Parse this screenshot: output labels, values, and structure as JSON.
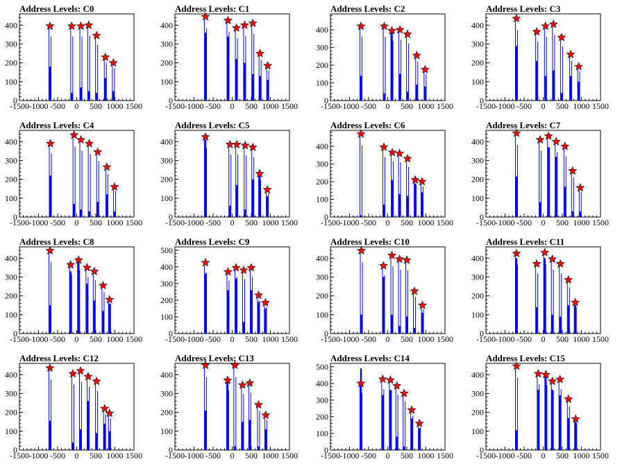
{
  "panel_title_prefix": "Address Levels: ",
  "colors": {
    "bar": "#0000ff",
    "marker_fill": "#ff0000",
    "marker_stroke": "#000000",
    "axis": "#000000"
  },
  "chart_data": [
    {
      "type": "bar",
      "title": "Address Levels: C0",
      "xlim": [
        -1500,
        1500
      ],
      "ylim": [
        0,
        460
      ],
      "xticks": [
        -1500,
        -1000,
        -500,
        0,
        500,
        1000,
        1500
      ],
      "yticks": [
        0,
        100,
        200,
        300,
        400
      ],
      "x": [
        -700,
        -130,
        110,
        315,
        520,
        750,
        960
      ],
      "peaks": [
        395,
        395,
        395,
        400,
        345,
        230,
        200
      ],
      "bars": [
        180,
        40,
        70,
        50,
        40,
        120,
        50
      ]
    },
    {
      "type": "bar",
      "title": "Address Levels: C1",
      "xlim": [
        -1500,
        1500
      ],
      "ylim": [
        0,
        460
      ],
      "xticks": [
        -1500,
        -1000,
        -500,
        0,
        500,
        1000,
        1500
      ],
      "yticks": [
        0,
        100,
        200,
        300,
        400
      ],
      "x": [
        -700,
        -110,
        110,
        325,
        540,
        730,
        930
      ],
      "peaks": [
        445,
        425,
        385,
        400,
        410,
        250,
        185
      ],
      "bars": [
        360,
        340,
        220,
        200,
        140,
        130,
        110
      ]
    },
    {
      "type": "bar",
      "title": "Address Levels: C2",
      "xlim": [
        -1500,
        1500
      ],
      "ylim": [
        0,
        490
      ],
      "xticks": [
        -1500,
        -1000,
        -500,
        0,
        500,
        1000,
        1500
      ],
      "yticks": [
        0,
        100,
        200,
        300,
        400
      ],
      "x": [
        -700,
        -90,
        110,
        320,
        520,
        760,
        980
      ],
      "peaks": [
        420,
        420,
        395,
        400,
        375,
        255,
        175
      ],
      "bars": [
        140,
        40,
        390,
        150,
        50,
        90,
        80
      ]
    },
    {
      "type": "bar",
      "title": "Address Levels: C3",
      "xlim": [
        -1500,
        1500
      ],
      "ylim": [
        0,
        460
      ],
      "xticks": [
        -1500,
        -1000,
        -500,
        0,
        500,
        1000,
        1500
      ],
      "yticks": [
        0,
        100,
        200,
        300,
        400
      ],
      "x": [
        -700,
        -170,
        60,
        270,
        480,
        720,
        930
      ],
      "peaks": [
        435,
        365,
        395,
        405,
        335,
        245,
        180
      ],
      "bars": [
        290,
        210,
        130,
        160,
        40,
        130,
        100
      ]
    },
    {
      "type": "bar",
      "title": "Address Levels: C4",
      "xlim": [
        -1500,
        1500
      ],
      "ylim": [
        0,
        460
      ],
      "xticks": [
        -1500,
        -1000,
        -500,
        0,
        500,
        1000,
        1500
      ],
      "yticks": [
        0,
        100,
        200,
        300,
        400
      ],
      "x": [
        -690,
        -70,
        110,
        330,
        550,
        790,
        990
      ],
      "peaks": [
        390,
        435,
        410,
        390,
        345,
        265,
        160
      ],
      "bars": [
        220,
        70,
        40,
        30,
        80,
        120,
        30
      ]
    },
    {
      "type": "bar",
      "title": "Address Levels: C5",
      "xlim": [
        -1500,
        1500
      ],
      "ylim": [
        0,
        460
      ],
      "xticks": [
        -1500,
        -1000,
        -500,
        0,
        500,
        1000,
        1500
      ],
      "yticks": [
        0,
        100,
        200,
        300,
        400
      ],
      "x": [
        -700,
        -60,
        120,
        340,
        540,
        720,
        920
      ],
      "peaks": [
        425,
        385,
        385,
        380,
        370,
        230,
        145
      ],
      "bars": [
        410,
        60,
        170,
        40,
        200,
        250,
        110
      ]
    },
    {
      "type": "bar",
      "title": "Address Levels: C6",
      "xlim": [
        -1500,
        1500
      ],
      "ylim": [
        0,
        490
      ],
      "xticks": [
        -1500,
        -1000,
        -500,
        0,
        500,
        1000,
        1500
      ],
      "yticks": [
        0,
        100,
        200,
        300,
        400
      ],
      "x": [
        -700,
        -100,
        120,
        310,
        520,
        720,
        900
      ],
      "peaks": [
        470,
        395,
        365,
        360,
        330,
        210,
        200
      ],
      "bars": [
        10,
        70,
        210,
        130,
        120,
        190,
        140
      ]
    },
    {
      "type": "bar",
      "title": "Address Levels: C7",
      "xlim": [
        -1500,
        1500
      ],
      "ylim": [
        0,
        460
      ],
      "xticks": [
        -1500,
        -1000,
        -500,
        0,
        500,
        1000,
        1500
      ],
      "yticks": [
        0,
        100,
        200,
        300,
        400
      ],
      "x": [
        -700,
        -80,
        140,
        340,
        570,
        770,
        970
      ],
      "peaks": [
        445,
        410,
        430,
        400,
        375,
        245,
        155
      ],
      "bars": [
        215,
        80,
        370,
        320,
        160,
        30,
        30
      ]
    },
    {
      "type": "bar",
      "title": "Address Levels: C8",
      "xlim": [
        -1500,
        1500
      ],
      "ylim": [
        0,
        460
      ],
      "xticks": [
        -1500,
        -1000,
        -500,
        0,
        500,
        1000,
        1500
      ],
      "yticks": [
        0,
        100,
        200,
        300,
        400
      ],
      "x": [
        -700,
        -160,
        50,
        270,
        460,
        690,
        860
      ],
      "peaks": [
        440,
        365,
        390,
        350,
        330,
        255,
        180
      ],
      "bars": [
        150,
        330,
        380,
        265,
        175,
        120,
        160
      ]
    },
    {
      "type": "bar",
      "title": "Address Levels: C9",
      "xlim": [
        -1500,
        1500
      ],
      "ylim": [
        0,
        520
      ],
      "xticks": [
        -1500,
        -1000,
        -500,
        0,
        500,
        1000,
        1500
      ],
      "yticks": [
        0,
        100,
        200,
        300,
        400,
        500
      ],
      "x": [
        -700,
        -110,
        100,
        300,
        500,
        690,
        870
      ],
      "peaks": [
        425,
        370,
        395,
        380,
        395,
        230,
        185
      ],
      "bars": [
        360,
        260,
        330,
        70,
        260,
        190,
        150
      ]
    },
    {
      "type": "bar",
      "title": "Address Levels: C10",
      "xlim": [
        -1500,
        1500
      ],
      "ylim": [
        0,
        460
      ],
      "xticks": [
        -1500,
        -1000,
        -500,
        0,
        500,
        1000,
        1500
      ],
      "yticks": [
        0,
        100,
        200,
        300,
        400
      ],
      "x": [
        -690,
        -110,
        110,
        310,
        500,
        700,
        910
      ],
      "peaks": [
        440,
        360,
        415,
        395,
        390,
        225,
        150
      ],
      "bars": [
        100,
        300,
        100,
        40,
        90,
        30,
        110
      ]
    },
    {
      "type": "bar",
      "title": "Address Levels: C11",
      "xlim": [
        -1500,
        1500
      ],
      "ylim": [
        0,
        460
      ],
      "xticks": [
        -1500,
        -1000,
        -500,
        0,
        500,
        1000,
        1500
      ],
      "yticks": [
        0,
        100,
        200,
        300,
        400
      ],
      "x": [
        -700,
        -170,
        40,
        240,
        450,
        660,
        840
      ],
      "peaks": [
        425,
        370,
        430,
        395,
        370,
        285,
        165
      ],
      "bars": [
        400,
        140,
        400,
        100,
        90,
        150,
        150
      ]
    },
    {
      "type": "bar",
      "title": "Address Levels: C12",
      "xlim": [
        -1500,
        1500
      ],
      "ylim": [
        0,
        460
      ],
      "xticks": [
        -1500,
        -1000,
        -500,
        0,
        500,
        1000,
        1500
      ],
      "yticks": [
        0,
        100,
        200,
        300,
        400
      ],
      "x": [
        -700,
        -100,
        100,
        300,
        520,
        730,
        860
      ],
      "peaks": [
        435,
        405,
        420,
        390,
        365,
        220,
        195
      ],
      "bars": [
        155,
        40,
        110,
        260,
        90,
        140,
        100
      ]
    },
    {
      "type": "bar",
      "title": "Address Levels: C13",
      "xlim": [
        -1500,
        1500
      ],
      "ylim": [
        0,
        460
      ],
      "xticks": [
        -1500,
        -1000,
        -500,
        0,
        500,
        1000,
        1500
      ],
      "yticks": [
        0,
        100,
        200,
        300,
        400
      ],
      "x": [
        -700,
        -120,
        70,
        270,
        460,
        690,
        880
      ],
      "peaks": [
        450,
        370,
        450,
        345,
        355,
        240,
        185
      ],
      "bars": [
        210,
        390,
        20,
        150,
        160,
        20,
        110
      ]
    },
    {
      "type": "bar",
      "title": "Address Levels: C14",
      "xlim": [
        -1500,
        1500
      ],
      "ylim": [
        0,
        520
      ],
      "xticks": [
        -1500,
        -1000,
        -500,
        0,
        500,
        1000,
        1500
      ],
      "yticks": [
        0,
        100,
        200,
        300,
        400,
        500
      ],
      "x": [
        -700,
        -130,
        70,
        240,
        430,
        630,
        830
      ],
      "peaks": [
        400,
        425,
        420,
        385,
        340,
        240,
        160
      ],
      "bars": [
        490,
        330,
        360,
        80,
        20,
        190,
        130
      ]
    },
    {
      "type": "bar",
      "title": "Address Levels: C15",
      "xlim": [
        -1500,
        1500
      ],
      "ylim": [
        0,
        460
      ],
      "xticks": [
        -1500,
        -1000,
        -500,
        0,
        500,
        1000,
        1500
      ],
      "yticks": [
        0,
        100,
        200,
        300,
        400
      ],
      "x": [
        -700,
        -130,
        70,
        240,
        440,
        660,
        850
      ],
      "peaks": [
        445,
        405,
        400,
        365,
        375,
        270,
        165
      ],
      "bars": [
        105,
        320,
        420,
        320,
        290,
        170,
        150
      ]
    }
  ]
}
